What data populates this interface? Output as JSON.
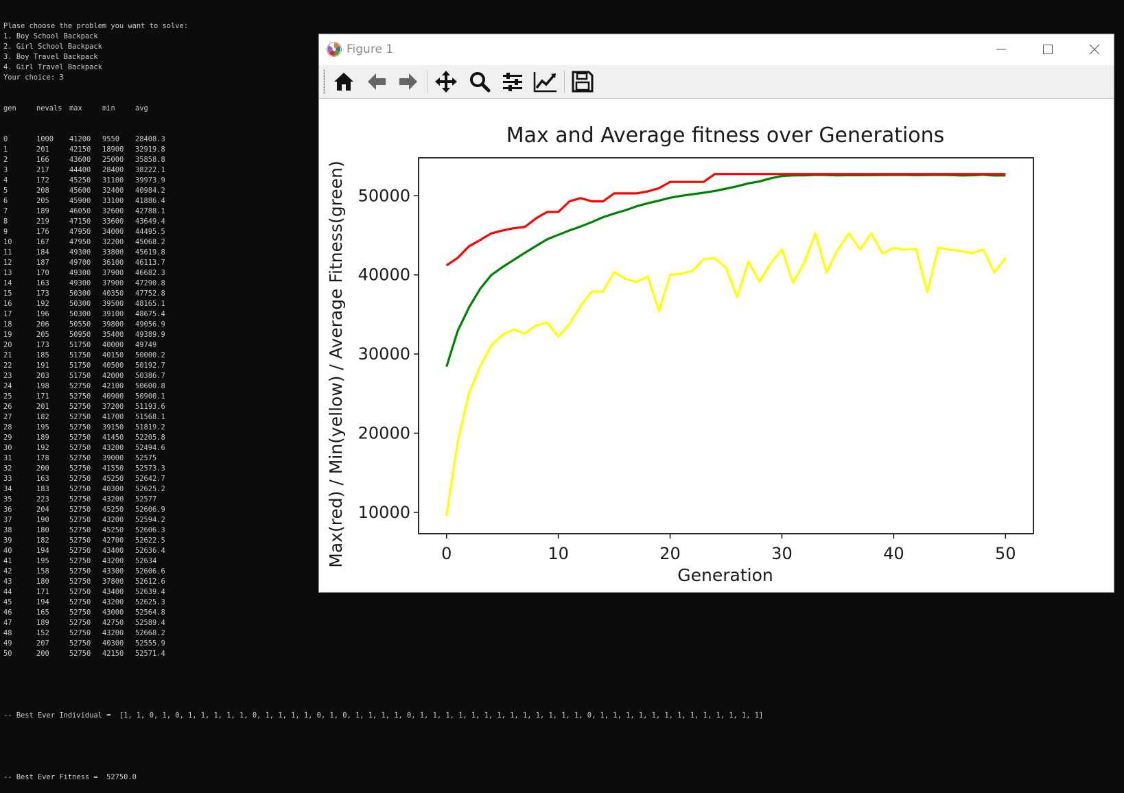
{
  "console": {
    "prompt_lines": [
      "Plase choose the problem you want to solve:",
      "1. Boy School Backpack",
      "2. Girl School Backpack",
      "3. Boy Travel Backpack",
      "4. Girl Travel Backpack",
      "Your choice: 3"
    ],
    "table_header": [
      "gen",
      "nevals",
      "max",
      "min",
      "avg"
    ],
    "table_rows": [
      [
        "0",
        "1000",
        "41200",
        "9550",
        "28408.3"
      ],
      [
        "1",
        "201",
        "42150",
        "18900",
        "32919.8"
      ],
      [
        "2",
        "166",
        "43600",
        "25000",
        "35858.8"
      ],
      [
        "3",
        "217",
        "44400",
        "28400",
        "38222.1"
      ],
      [
        "4",
        "172",
        "45250",
        "31100",
        "39973.9"
      ],
      [
        "5",
        "208",
        "45600",
        "32400",
        "40984.2"
      ],
      [
        "6",
        "205",
        "45900",
        "33100",
        "41886.4"
      ],
      [
        "7",
        "189",
        "46050",
        "32600",
        "42788.1"
      ],
      [
        "8",
        "219",
        "47150",
        "33600",
        "43649.4"
      ],
      [
        "9",
        "176",
        "47950",
        "34000",
        "44495.5"
      ],
      [
        "10",
        "167",
        "47950",
        "32200",
        "45068.2"
      ],
      [
        "11",
        "184",
        "49300",
        "33800",
        "45619.8"
      ],
      [
        "12",
        "187",
        "49700",
        "36100",
        "46113.7"
      ],
      [
        "13",
        "170",
        "49300",
        "37900",
        "46682.3"
      ],
      [
        "14",
        "163",
        "49300",
        "37900",
        "47290.8"
      ],
      [
        "15",
        "173",
        "50300",
        "40350",
        "47752.8"
      ],
      [
        "16",
        "192",
        "50300",
        "39500",
        "48165.1"
      ],
      [
        "17",
        "196",
        "50300",
        "39100",
        "48675.4"
      ],
      [
        "18",
        "206",
        "50550",
        "39800",
        "49056.9"
      ],
      [
        "19",
        "205",
        "50950",
        "35400",
        "49389.9"
      ],
      [
        "20",
        "173",
        "51750",
        "40000",
        "49749"
      ],
      [
        "21",
        "185",
        "51750",
        "40150",
        "50000.2"
      ],
      [
        "22",
        "191",
        "51750",
        "40500",
        "50192.7"
      ],
      [
        "23",
        "203",
        "51750",
        "42000",
        "50386.7"
      ],
      [
        "24",
        "198",
        "52750",
        "42100",
        "50600.8"
      ],
      [
        "25",
        "171",
        "52750",
        "40900",
        "50900.1"
      ],
      [
        "26",
        "201",
        "52750",
        "37200",
        "51193.6"
      ],
      [
        "27",
        "182",
        "52750",
        "41700",
        "51568.1"
      ],
      [
        "28",
        "195",
        "52750",
        "39150",
        "51819.2"
      ],
      [
        "29",
        "189",
        "52750",
        "41450",
        "52205.8"
      ],
      [
        "30",
        "192",
        "52750",
        "43200",
        "52494.6"
      ],
      [
        "31",
        "178",
        "52750",
        "39000",
        "52575"
      ],
      [
        "32",
        "200",
        "52750",
        "41550",
        "52573.3"
      ],
      [
        "33",
        "163",
        "52750",
        "45250",
        "52642.7"
      ],
      [
        "34",
        "183",
        "52750",
        "40300",
        "52625.2"
      ],
      [
        "35",
        "223",
        "52750",
        "43200",
        "52577"
      ],
      [
        "36",
        "204",
        "52750",
        "45250",
        "52606.9"
      ],
      [
        "37",
        "190",
        "52750",
        "43200",
        "52594.2"
      ],
      [
        "38",
        "180",
        "52750",
        "45250",
        "52606.3"
      ],
      [
        "39",
        "182",
        "52750",
        "42700",
        "52622.5"
      ],
      [
        "40",
        "194",
        "52750",
        "43400",
        "52636.4"
      ],
      [
        "41",
        "195",
        "52750",
        "43200",
        "52634"
      ],
      [
        "42",
        "158",
        "52750",
        "43300",
        "52606.6"
      ],
      [
        "43",
        "180",
        "52750",
        "37800",
        "52612.6"
      ],
      [
        "44",
        "171",
        "52750",
        "43400",
        "52639.4"
      ],
      [
        "45",
        "194",
        "52750",
        "43200",
        "52625.3"
      ],
      [
        "46",
        "165",
        "52750",
        "43000",
        "52564.8"
      ],
      [
        "47",
        "189",
        "52750",
        "42750",
        "52589.4"
      ],
      [
        "48",
        "152",
        "52750",
        "43200",
        "52668.2"
      ],
      [
        "49",
        "207",
        "52750",
        "40300",
        "52555.9"
      ],
      [
        "50",
        "200",
        "52750",
        "42150",
        "52571.4"
      ]
    ],
    "best_individual": "-- Best Ever Individual =  [1, 1, 0, 1, 0, 1, 1, 1, 1, 1, 0, 1, 1, 1, 1, 0, 1, 0, 1, 1, 1, 1, 0, 1, 1, 1, 1, 1, 1, 1, 1, 1, 1, 1, 1, 1, 0, 1, 1, 1, 1, 1, 1, 1, 1, 1, 1, 1, 1, 1]",
    "best_fitness": "-- Best Ever Fitness =  52750.0"
  },
  "window": {
    "title": "Figure 1",
    "controls": [
      "minimize-icon",
      "maximize-icon",
      "close-icon"
    ]
  },
  "toolbar": {
    "buttons": [
      "home-icon",
      "back-arrow-icon",
      "forward-arrow-icon",
      "pan-move-icon",
      "zoom-magnifier-icon",
      "subplots-sliders-icon",
      "edit-axes-curve-icon",
      "save-floppy-icon"
    ]
  },
  "colors": {
    "console_bg": "#0c0c0c",
    "console_text": "#cccccc",
    "max_line": "#ff0000",
    "min_line": "#ffff00",
    "avg_line": "#008000"
  },
  "chart_data": {
    "type": "line",
    "title": "Max and Average fitness over Generations",
    "xlabel": "Generation",
    "ylabel": "Max(red) / Min(yellow) / Average Fitness(green)",
    "xlim": [
      -2.5,
      52.5
    ],
    "ylim": [
      7300,
      54800
    ],
    "xticks": [
      0,
      10,
      20,
      30,
      40,
      50
    ],
    "yticks": [
      10000,
      20000,
      30000,
      40000,
      50000
    ],
    "grid": false,
    "x": [
      0,
      1,
      2,
      3,
      4,
      5,
      6,
      7,
      8,
      9,
      10,
      11,
      12,
      13,
      14,
      15,
      16,
      17,
      18,
      19,
      20,
      21,
      22,
      23,
      24,
      25,
      26,
      27,
      28,
      29,
      30,
      31,
      32,
      33,
      34,
      35,
      36,
      37,
      38,
      39,
      40,
      41,
      42,
      43,
      44,
      45,
      46,
      47,
      48,
      49,
      50
    ],
    "series": [
      {
        "color": "#ff0000",
        "values": [
          41200,
          42150,
          43600,
          44400,
          45250,
          45600,
          45900,
          46050,
          47150,
          47950,
          47950,
          49300,
          49700,
          49300,
          49300,
          50300,
          50300,
          50300,
          50550,
          50950,
          51750,
          51750,
          51750,
          51750,
          52750,
          52750,
          52750,
          52750,
          52750,
          52750,
          52750,
          52750,
          52750,
          52750,
          52750,
          52750,
          52750,
          52750,
          52750,
          52750,
          52750,
          52750,
          52750,
          52750,
          52750,
          52750,
          52750,
          52750,
          52750,
          52750,
          52750
        ]
      },
      {
        "color": "#ffff00",
        "values": [
          9550,
          18900,
          25000,
          28400,
          31100,
          32400,
          33100,
          32600,
          33600,
          34000,
          32200,
          33800,
          36100,
          37900,
          37900,
          40350,
          39500,
          39100,
          39800,
          35400,
          40000,
          40150,
          40500,
          42000,
          42100,
          40900,
          37200,
          41700,
          39150,
          41450,
          43200,
          39000,
          41550,
          45250,
          40300,
          43200,
          45250,
          43200,
          45250,
          42700,
          43400,
          43200,
          43300,
          37800,
          43400,
          43200,
          43000,
          42750,
          43200,
          40300,
          42150
        ]
      },
      {
        "color": "#008000",
        "values": [
          28408.3,
          32919.8,
          35858.8,
          38222.1,
          39973.9,
          40984.2,
          41886.4,
          42788.1,
          43649.4,
          44495.5,
          45068.2,
          45619.8,
          46113.7,
          46682.3,
          47290.8,
          47752.8,
          48165.1,
          48675.4,
          49056.9,
          49389.9,
          49749,
          50000.2,
          50192.7,
          50386.7,
          50600.8,
          50900.1,
          51193.6,
          51568.1,
          51819.2,
          52205.8,
          52494.6,
          52575,
          52573.3,
          52642.7,
          52625.2,
          52577,
          52606.9,
          52594.2,
          52606.3,
          52622.5,
          52636.4,
          52634,
          52606.6,
          52612.6,
          52639.4,
          52625.3,
          52564.8,
          52589.4,
          52668.2,
          52555.9,
          52571.4
        ]
      }
    ]
  }
}
